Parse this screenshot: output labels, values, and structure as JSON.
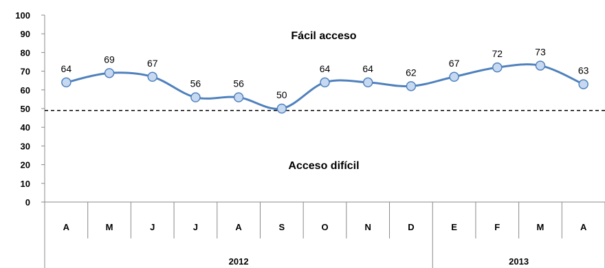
{
  "chart_data": {
    "type": "line",
    "categories": [
      "A",
      "M",
      "J",
      "J",
      "A",
      "S",
      "O",
      "N",
      "D",
      "E",
      "F",
      "M",
      "A"
    ],
    "values": [
      64,
      69,
      67,
      56,
      56,
      50,
      64,
      64,
      62,
      67,
      72,
      73,
      63
    ],
    "groups": [
      {
        "label": "2012",
        "count": 9
      },
      {
        "label": "2013",
        "count": 4
      }
    ],
    "ylim": [
      0,
      100
    ],
    "yticks": [
      0,
      10,
      20,
      30,
      40,
      50,
      60,
      70,
      80,
      90,
      100
    ],
    "reference_line": {
      "value": 49,
      "style": "dashed"
    },
    "annotations": {
      "upper": "Fácil acceso",
      "lower": "Acceso difícil"
    },
    "line_color": "#4f81bd",
    "marker_fill": "#c6d9f1",
    "grid": false,
    "legend": "none"
  }
}
